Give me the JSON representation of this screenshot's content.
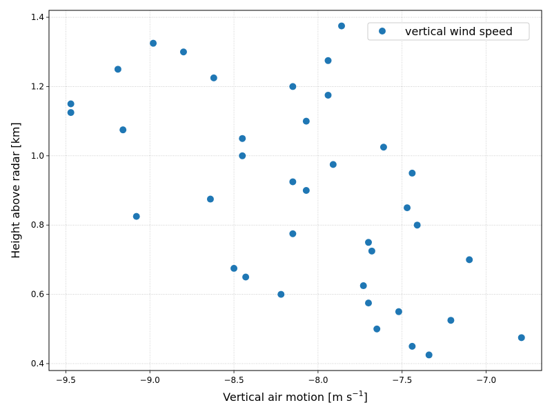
{
  "chart_data": {
    "type": "scatter",
    "xlabel": "Vertical air motion [m s",
    "xlabel_sup": "−1",
    "xlabel_end": "]",
    "ylabel": "Height above radar [km]",
    "xlim": [
      -9.6,
      -6.67
    ],
    "ylim": [
      0.38,
      1.42
    ],
    "xticks": [
      -9.5,
      -9.0,
      -8.5,
      -8.0,
      -7.5,
      -7.0
    ],
    "xtick_labels": [
      "−9.5",
      "−9.0",
      "−8.5",
      "−8.0",
      "−7.5",
      "−7.0"
    ],
    "yticks": [
      0.4,
      0.6,
      0.8,
      1.0,
      1.2,
      1.4
    ],
    "ytick_labels": [
      "0.4",
      "0.6",
      "0.8",
      "1.0",
      "1.2",
      "1.4"
    ],
    "grid": true,
    "legend_position": "top-right",
    "color": "#1f77b4",
    "series": [
      {
        "name": "vertical wind speed",
        "points": [
          {
            "x": -9.47,
            "y": 1.15
          },
          {
            "x": -9.47,
            "y": 1.125
          },
          {
            "x": -9.19,
            "y": 1.25
          },
          {
            "x": -9.16,
            "y": 1.075
          },
          {
            "x": -9.08,
            "y": 0.825
          },
          {
            "x": -8.98,
            "y": 1.325
          },
          {
            "x": -8.8,
            "y": 1.3
          },
          {
            "x": -8.62,
            "y": 1.225
          },
          {
            "x": -8.64,
            "y": 0.875
          },
          {
            "x": -8.5,
            "y": 0.675
          },
          {
            "x": -8.45,
            "y": 1.05
          },
          {
            "x": -8.45,
            "y": 1.0
          },
          {
            "x": -8.43,
            "y": 0.65
          },
          {
            "x": -8.22,
            "y": 0.6
          },
          {
            "x": -8.15,
            "y": 1.2
          },
          {
            "x": -8.15,
            "y": 0.925
          },
          {
            "x": -8.15,
            "y": 0.775
          },
          {
            "x": -8.07,
            "y": 1.1
          },
          {
            "x": -8.07,
            "y": 0.9
          },
          {
            "x": -7.94,
            "y": 1.275
          },
          {
            "x": -7.94,
            "y": 1.175
          },
          {
            "x": -7.91,
            "y": 0.975
          },
          {
            "x": -7.86,
            "y": 1.375
          },
          {
            "x": -7.73,
            "y": 0.625
          },
          {
            "x": -7.7,
            "y": 0.75
          },
          {
            "x": -7.7,
            "y": 0.575
          },
          {
            "x": -7.68,
            "y": 0.725
          },
          {
            "x": -7.65,
            "y": 0.5
          },
          {
            "x": -7.61,
            "y": 1.025
          },
          {
            "x": -7.52,
            "y": 0.55
          },
          {
            "x": -7.47,
            "y": 0.85
          },
          {
            "x": -7.44,
            "y": 0.95
          },
          {
            "x": -7.44,
            "y": 0.45
          },
          {
            "x": -7.41,
            "y": 0.8
          },
          {
            "x": -7.34,
            "y": 0.425
          },
          {
            "x": -7.21,
            "y": 0.525
          },
          {
            "x": -7.1,
            "y": 0.7
          },
          {
            "x": -6.79,
            "y": 0.475
          }
        ]
      }
    ]
  }
}
